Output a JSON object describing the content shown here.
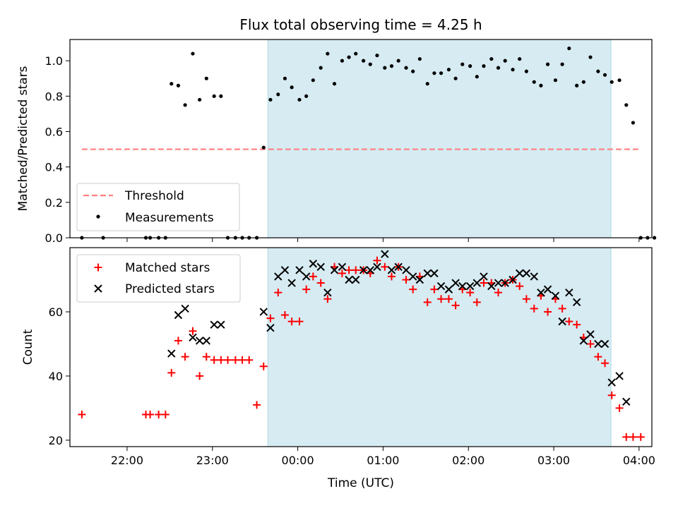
{
  "chart_data": [
    {
      "type": "scatter",
      "title": "Flux total observing time = 4.25 h",
      "xlabel": "",
      "ylabel": "Matched/Predicted stars",
      "ylim": [
        0,
        1.12
      ],
      "yticks": [
        "0.0",
        "0.2",
        "0.4",
        "0.6",
        "0.8",
        "1.0"
      ],
      "ytick_values": [
        0,
        0.2,
        0.4,
        0.6,
        0.8,
        1.0
      ],
      "xlim_hours": [
        21.33,
        28.15
      ],
      "shaded_span_hours": [
        23.65,
        27.67
      ],
      "shaded_color": "#add8e6",
      "legend_position": "lower-left",
      "series": [
        {
          "name": "Threshold",
          "style": "dashed-line",
          "color": "#ff7f7f",
          "x_hours": [
            21.47,
            28.0
          ],
          "y": [
            0.5,
            0.5
          ]
        },
        {
          "name": "Measurements",
          "style": "dot",
          "color": "#000000",
          "points": [
            [
              21.47,
              0.0
            ],
            [
              21.72,
              0.0
            ],
            [
              22.22,
              0.0
            ],
            [
              22.27,
              0.0
            ],
            [
              22.37,
              0.0
            ],
            [
              22.45,
              0.0
            ],
            [
              22.52,
              0.87
            ],
            [
              22.6,
              0.86
            ],
            [
              22.68,
              0.75
            ],
            [
              22.77,
              1.04
            ],
            [
              22.85,
              0.78
            ],
            [
              22.93,
              0.9
            ],
            [
              23.02,
              0.8
            ],
            [
              23.1,
              0.8
            ],
            [
              23.18,
              0.0
            ],
            [
              23.27,
              0.0
            ],
            [
              23.35,
              0.0
            ],
            [
              23.43,
              0.0
            ],
            [
              23.52,
              0.0
            ],
            [
              23.6,
              0.51
            ],
            [
              23.68,
              0.78
            ],
            [
              23.77,
              0.81
            ],
            [
              23.85,
              0.9
            ],
            [
              23.93,
              0.85
            ],
            [
              24.02,
              0.78
            ],
            [
              24.1,
              0.8
            ],
            [
              24.18,
              0.89
            ],
            [
              24.27,
              0.96
            ],
            [
              24.35,
              1.04
            ],
            [
              24.43,
              0.87
            ],
            [
              24.52,
              1.0
            ],
            [
              24.6,
              1.02
            ],
            [
              24.68,
              1.04
            ],
            [
              24.77,
              1.0
            ],
            [
              24.85,
              0.98
            ],
            [
              24.93,
              1.03
            ],
            [
              25.02,
              0.96
            ],
            [
              25.1,
              0.97
            ],
            [
              25.18,
              1.0
            ],
            [
              25.27,
              0.96
            ],
            [
              25.35,
              0.94
            ],
            [
              25.43,
              1.01
            ],
            [
              25.52,
              0.87
            ],
            [
              25.6,
              0.93
            ],
            [
              25.68,
              0.93
            ],
            [
              25.77,
              0.95
            ],
            [
              25.85,
              0.9
            ],
            [
              25.93,
              0.98
            ],
            [
              26.02,
              0.97
            ],
            [
              26.1,
              0.91
            ],
            [
              26.18,
              0.97
            ],
            [
              26.27,
              1.01
            ],
            [
              26.35,
              0.96
            ],
            [
              26.43,
              1.0
            ],
            [
              26.52,
              0.95
            ],
            [
              26.6,
              1.01
            ],
            [
              26.68,
              0.94
            ],
            [
              26.77,
              0.88
            ],
            [
              26.85,
              0.86
            ],
            [
              26.93,
              0.98
            ],
            [
              27.02,
              0.89
            ],
            [
              27.1,
              0.98
            ],
            [
              27.18,
              1.07
            ],
            [
              27.27,
              0.86
            ],
            [
              27.35,
              0.88
            ],
            [
              27.43,
              1.02
            ],
            [
              27.52,
              0.94
            ],
            [
              27.6,
              0.92
            ],
            [
              27.68,
              0.88
            ],
            [
              27.77,
              0.89
            ],
            [
              27.85,
              0.75
            ],
            [
              27.93,
              0.65
            ],
            [
              28.02,
              0.0
            ],
            [
              28.1,
              0.0
            ],
            [
              28.18,
              0.0
            ]
          ]
        }
      ]
    },
    {
      "type": "scatter",
      "title": "",
      "xlabel": "Time (UTC)",
      "ylabel": "Count",
      "ylim": [
        18,
        80
      ],
      "yticks": [
        "20",
        "40",
        "60"
      ],
      "ytick_values": [
        20,
        40,
        60
      ],
      "xlim_hours": [
        21.33,
        28.15
      ],
      "xticks": [
        "22:00",
        "23:00",
        "00:00",
        "01:00",
        "02:00",
        "03:00",
        "04:00"
      ],
      "xtick_hours": [
        22,
        23,
        24,
        25,
        26,
        27,
        28
      ],
      "shaded_span_hours": [
        23.65,
        27.67
      ],
      "shaded_color": "#add8e6",
      "legend_position": "top-left",
      "series": [
        {
          "name": "Matched stars",
          "style": "plus",
          "color": "#ff0000",
          "points": [
            [
              21.47,
              28
            ],
            [
              22.22,
              28
            ],
            [
              22.27,
              28
            ],
            [
              22.37,
              28
            ],
            [
              22.45,
              28
            ],
            [
              22.52,
              41
            ],
            [
              22.6,
              51
            ],
            [
              22.68,
              46
            ],
            [
              22.77,
              54
            ],
            [
              22.85,
              40
            ],
            [
              22.93,
              46
            ],
            [
              23.02,
              45
            ],
            [
              23.1,
              45
            ],
            [
              23.18,
              45
            ],
            [
              23.27,
              45
            ],
            [
              23.35,
              45
            ],
            [
              23.43,
              45
            ],
            [
              23.52,
              31
            ],
            [
              23.6,
              43
            ],
            [
              23.68,
              58
            ],
            [
              23.77,
              66
            ],
            [
              23.85,
              59
            ],
            [
              23.93,
              57
            ],
            [
              24.02,
              57
            ],
            [
              24.1,
              67
            ],
            [
              24.18,
              71
            ],
            [
              24.27,
              69
            ],
            [
              24.35,
              64
            ],
            [
              24.43,
              74
            ],
            [
              24.52,
              72
            ],
            [
              24.6,
              73
            ],
            [
              24.68,
              73
            ],
            [
              24.77,
              73
            ],
            [
              24.85,
              72
            ],
            [
              24.93,
              76
            ],
            [
              25.02,
              74
            ],
            [
              25.1,
              71
            ],
            [
              25.18,
              74
            ],
            [
              25.27,
              70
            ],
            [
              25.35,
              67
            ],
            [
              25.43,
              71
            ],
            [
              25.52,
              63
            ],
            [
              25.6,
              67
            ],
            [
              25.68,
              64
            ],
            [
              25.77,
              64
            ],
            [
              25.85,
              62
            ],
            [
              25.93,
              67
            ],
            [
              26.02,
              66
            ],
            [
              26.1,
              63
            ],
            [
              26.18,
              69
            ],
            [
              26.27,
              69
            ],
            [
              26.35,
              66
            ],
            [
              26.43,
              69
            ],
            [
              26.52,
              70
            ],
            [
              26.6,
              68
            ],
            [
              26.68,
              64
            ],
            [
              26.77,
              61
            ],
            [
              26.85,
              65
            ],
            [
              26.93,
              60
            ],
            [
              27.02,
              64
            ],
            [
              27.1,
              61
            ],
            [
              27.18,
              57
            ],
            [
              27.27,
              56
            ],
            [
              27.35,
              52
            ],
            [
              27.43,
              50
            ],
            [
              27.52,
              46
            ],
            [
              27.6,
              44
            ],
            [
              27.68,
              34
            ],
            [
              27.77,
              30
            ],
            [
              27.85,
              21
            ],
            [
              27.93,
              21
            ],
            [
              28.02,
              21
            ]
          ]
        },
        {
          "name": "Predicted stars",
          "style": "x",
          "color": "#000000",
          "points": [
            [
              22.52,
              47
            ],
            [
              22.6,
              59
            ],
            [
              22.68,
              61
            ],
            [
              22.77,
              52
            ],
            [
              22.85,
              51
            ],
            [
              22.93,
              51
            ],
            [
              23.02,
              56
            ],
            [
              23.1,
              56
            ],
            [
              23.6,
              60
            ],
            [
              23.68,
              55
            ],
            [
              23.77,
              71
            ],
            [
              23.85,
              73
            ],
            [
              23.93,
              69
            ],
            [
              24.02,
              73
            ],
            [
              24.1,
              71
            ],
            [
              24.18,
              75
            ],
            [
              24.27,
              74
            ],
            [
              24.35,
              66
            ],
            [
              24.43,
              73
            ],
            [
              24.52,
              74
            ],
            [
              24.6,
              70
            ],
            [
              24.68,
              70
            ],
            [
              24.77,
              73
            ],
            [
              24.85,
              73
            ],
            [
              24.93,
              74
            ],
            [
              25.02,
              78
            ],
            [
              25.1,
              73
            ],
            [
              25.18,
              74
            ],
            [
              25.27,
              73
            ],
            [
              25.35,
              71
            ],
            [
              25.43,
              70
            ],
            [
              25.52,
              72
            ],
            [
              25.6,
              72
            ],
            [
              25.68,
              68
            ],
            [
              25.77,
              67
            ],
            [
              25.85,
              69
            ],
            [
              25.93,
              68
            ],
            [
              26.02,
              68
            ],
            [
              26.1,
              69
            ],
            [
              26.18,
              71
            ],
            [
              26.27,
              68
            ],
            [
              26.35,
              69
            ],
            [
              26.43,
              69
            ],
            [
              26.52,
              70
            ],
            [
              26.6,
              72
            ],
            [
              26.68,
              72
            ],
            [
              26.77,
              71
            ],
            [
              26.85,
              66
            ],
            [
              26.93,
              67
            ],
            [
              27.02,
              65
            ],
            [
              27.1,
              57
            ],
            [
              27.18,
              66
            ],
            [
              27.27,
              63
            ],
            [
              27.35,
              51
            ],
            [
              27.43,
              53
            ],
            [
              27.52,
              50
            ],
            [
              27.6,
              50
            ],
            [
              27.68,
              38
            ],
            [
              27.77,
              40
            ],
            [
              27.85,
              32
            ]
          ]
        }
      ]
    }
  ]
}
